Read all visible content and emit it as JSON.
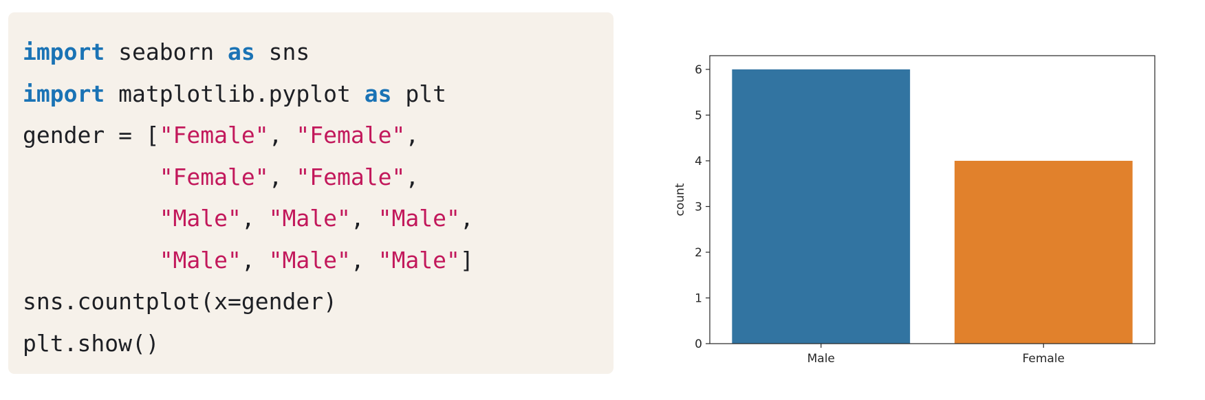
{
  "code": {
    "lines": [
      [
        {
          "t": "kw",
          "v": "import"
        },
        {
          "t": "plain",
          "v": " seaborn "
        },
        {
          "t": "kw",
          "v": "as"
        },
        {
          "t": "plain",
          "v": " sns"
        }
      ],
      [
        {
          "t": "kw",
          "v": "import"
        },
        {
          "t": "plain",
          "v": " matplotlib.pyplot "
        },
        {
          "t": "kw",
          "v": "as"
        },
        {
          "t": "plain",
          "v": " plt"
        }
      ],
      [
        {
          "t": "plain",
          "v": "gender = ["
        },
        {
          "t": "str",
          "v": "\"Female\""
        },
        {
          "t": "plain",
          "v": ", "
        },
        {
          "t": "str",
          "v": "\"Female\""
        },
        {
          "t": "plain",
          "v": ","
        }
      ],
      [
        {
          "t": "plain",
          "v": "          "
        },
        {
          "t": "str",
          "v": "\"Female\""
        },
        {
          "t": "plain",
          "v": ", "
        },
        {
          "t": "str",
          "v": "\"Female\""
        },
        {
          "t": "plain",
          "v": ","
        }
      ],
      [
        {
          "t": "plain",
          "v": "          "
        },
        {
          "t": "str",
          "v": "\"Male\""
        },
        {
          "t": "plain",
          "v": ", "
        },
        {
          "t": "str",
          "v": "\"Male\""
        },
        {
          "t": "plain",
          "v": ", "
        },
        {
          "t": "str",
          "v": "\"Male\""
        },
        {
          "t": "plain",
          "v": ","
        }
      ],
      [
        {
          "t": "plain",
          "v": "          "
        },
        {
          "t": "str",
          "v": "\"Male\""
        },
        {
          "t": "plain",
          "v": ", "
        },
        {
          "t": "str",
          "v": "\"Male\""
        },
        {
          "t": "plain",
          "v": ", "
        },
        {
          "t": "str",
          "v": "\"Male\""
        },
        {
          "t": "plain",
          "v": "]"
        }
      ],
      [
        {
          "t": "plain",
          "v": "sns.countplot(x=gender)"
        }
      ],
      [
        {
          "t": "plain",
          "v": "plt.show()"
        }
      ]
    ],
    "colors": {
      "keyword": "#1a73b5",
      "string": "#c2185b",
      "plain": "#1d1f24",
      "background": "#f6f1ea"
    }
  },
  "chart_data": {
    "type": "bar",
    "categories": [
      "Male",
      "Female"
    ],
    "values": [
      6,
      4
    ],
    "colors": [
      "#3274a1",
      "#e1812c"
    ],
    "ylabel": "count",
    "xlabel": "",
    "ylim": [
      0,
      6.3
    ],
    "yticks": [
      0,
      1,
      2,
      3,
      4,
      5,
      6
    ],
    "grid": false
  }
}
